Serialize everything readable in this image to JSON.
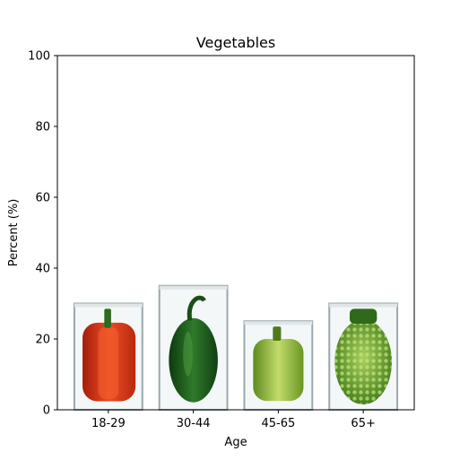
{
  "chart_data": {
    "type": "bar",
    "title": "Vegetables",
    "xlabel": "Age",
    "ylabel": "Percent (%)",
    "categories": [
      "18-29",
      "30-44",
      "45-65",
      "65+"
    ],
    "values": [
      30,
      35,
      25,
      30
    ],
    "ylim": [
      0,
      100
    ],
    "yticks": [
      0,
      20,
      40,
      60,
      80,
      100
    ],
    "grid": false,
    "legend": "none",
    "bar_images": [
      "red-bell-pepper-icon",
      "green-bell-pepper-icon",
      "light-green-bell-pepper-icon",
      "romanesco-broccoli-icon"
    ],
    "colors": {
      "red_pepper": "#d63a1c",
      "green_pepper": "#1f5f1f",
      "light_pepper": "#8fb83a",
      "broccoli": "#5e9a2e",
      "bar_frame": "#9aa8ad"
    }
  }
}
